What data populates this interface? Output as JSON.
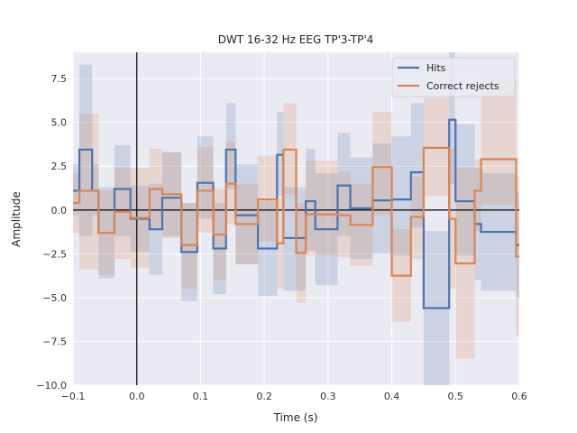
{
  "chart_data": {
    "type": "line",
    "title": "DWT 16-32 Hz EEG TP'3-TP'4",
    "xlabel": "Time (s)",
    "ylabel": "Amplitude",
    "xlim": [
      -0.1,
      0.6
    ],
    "ylim": [
      -10.0,
      9.0
    ],
    "xticks": [
      -0.1,
      0.0,
      0.1,
      0.2,
      0.3,
      0.4,
      0.5,
      0.6
    ],
    "xtick_labels": [
      "−0.1",
      "0.0",
      "0.1",
      "0.2",
      "0.3",
      "0.4",
      "0.5",
      "0.6"
    ],
    "yticks": [
      -10.0,
      -7.5,
      -5.0,
      -2.5,
      0.0,
      2.5,
      5.0,
      7.5
    ],
    "ytick_labels": [
      "−10.0",
      "−7.5",
      "−5.0",
      "−2.5",
      "0.0",
      "2.5",
      "5.0",
      "7.5"
    ],
    "grid": true,
    "legend_position": "top-right",
    "reference_lines": {
      "x": 0.0,
      "y": 0.0
    },
    "x_edges": [
      -0.1,
      -0.09,
      -0.07,
      -0.06,
      -0.035,
      -0.01,
      0.0,
      0.02,
      0.04,
      0.06,
      0.07,
      0.095,
      0.12,
      0.14,
      0.155,
      0.175,
      0.19,
      0.205,
      0.22,
      0.23,
      0.25,
      0.265,
      0.28,
      0.3,
      0.315,
      0.335,
      0.355,
      0.37,
      0.4,
      0.43,
      0.45,
      0.465,
      0.49,
      0.5,
      0.53,
      0.54,
      0.565,
      0.595,
      0.6
    ],
    "series": [
      {
        "name": "Hits",
        "color": "#4c72b0",
        "values": [
          1.1,
          3.45,
          1.1,
          -1.3,
          1.2,
          -0.5,
          -0.5,
          -1.1,
          0.7,
          0.7,
          -2.4,
          1.55,
          -2.2,
          3.45,
          -0.3,
          -0.3,
          -2.2,
          -2.2,
          3.15,
          -1.6,
          -1.6,
          0.5,
          -1.1,
          -1.1,
          1.4,
          0.1,
          0.1,
          0.55,
          0.6,
          2.15,
          -5.6,
          -5.6,
          5.15,
          0.5,
          -0.8,
          -1.25,
          -1.25,
          -2.0
        ],
        "lower": [
          -0.3,
          -1.5,
          -0.3,
          -3.9,
          -1.5,
          -2.4,
          -2.4,
          -3.7,
          -1.5,
          -1.5,
          -5.2,
          -0.5,
          -4.8,
          1.2,
          -3.1,
          -3.1,
          -4.9,
          -4.9,
          0.8,
          -4.6,
          -4.6,
          -2.3,
          -4.3,
          -4.3,
          -1.5,
          -2.8,
          -2.8,
          -2.5,
          -2.6,
          -1.0,
          -10.0,
          -10.0,
          1.5,
          -2.6,
          -4.0,
          -4.6,
          -4.6,
          -5.0
        ],
        "upper": [
          2.6,
          8.3,
          2.6,
          1.3,
          3.7,
          1.4,
          1.4,
          1.5,
          3.3,
          3.3,
          0.4,
          4.2,
          0.4,
          6.1,
          2.6,
          2.6,
          0.5,
          0.5,
          5.6,
          1.3,
          1.3,
          3.5,
          2.1,
          2.1,
          4.4,
          3.0,
          3.0,
          3.8,
          4.2,
          6.1,
          -1.2,
          -1.2,
          9.0,
          4.9,
          2.4,
          2.1,
          2.1,
          1.0
        ]
      },
      {
        "name": "Correct rejects",
        "color": "#dd8452",
        "values": [
          0.4,
          1.1,
          1.1,
          -1.3,
          -0.1,
          -0.45,
          -0.45,
          1.2,
          0.9,
          0.9,
          -2.0,
          1.1,
          -1.4,
          1.5,
          -0.8,
          -0.8,
          0.6,
          0.6,
          -1.9,
          3.45,
          -2.45,
          -0.25,
          -0.25,
          -0.25,
          -0.3,
          -0.85,
          -0.85,
          2.45,
          -3.75,
          -0.4,
          3.55,
          3.55,
          -0.5,
          -3.05,
          1.1,
          2.9,
          2.9,
          -2.65
        ],
        "lower": [
          -1.3,
          -3.4,
          -3.4,
          -3.7,
          -2.8,
          -3.3,
          -3.3,
          -1.0,
          -1.6,
          -1.6,
          -4.5,
          -1.3,
          -4.0,
          -0.8,
          -3.1,
          -3.1,
          -1.8,
          -1.8,
          -4.5,
          0.9,
          -5.3,
          -2.6,
          -2.6,
          -2.6,
          -2.7,
          -3.2,
          -3.2,
          -0.3,
          -6.4,
          -2.8,
          0.8,
          0.8,
          -4.5,
          -8.5,
          -1.2,
          0.3,
          0.3,
          -7.2
        ],
        "upper": [
          2.1,
          5.5,
          5.5,
          1.1,
          2.4,
          2.4,
          2.4,
          3.5,
          3.3,
          3.3,
          0.4,
          3.6,
          1.2,
          3.9,
          1.5,
          1.5,
          3.1,
          3.1,
          0.7,
          6.1,
          0.4,
          2.8,
          2.8,
          2.8,
          2.2,
          1.5,
          1.5,
          5.6,
          -1.1,
          1.9,
          6.4,
          6.4,
          3.5,
          2.4,
          2.9,
          7.5,
          7.5,
          1.9
        ]
      }
    ]
  }
}
